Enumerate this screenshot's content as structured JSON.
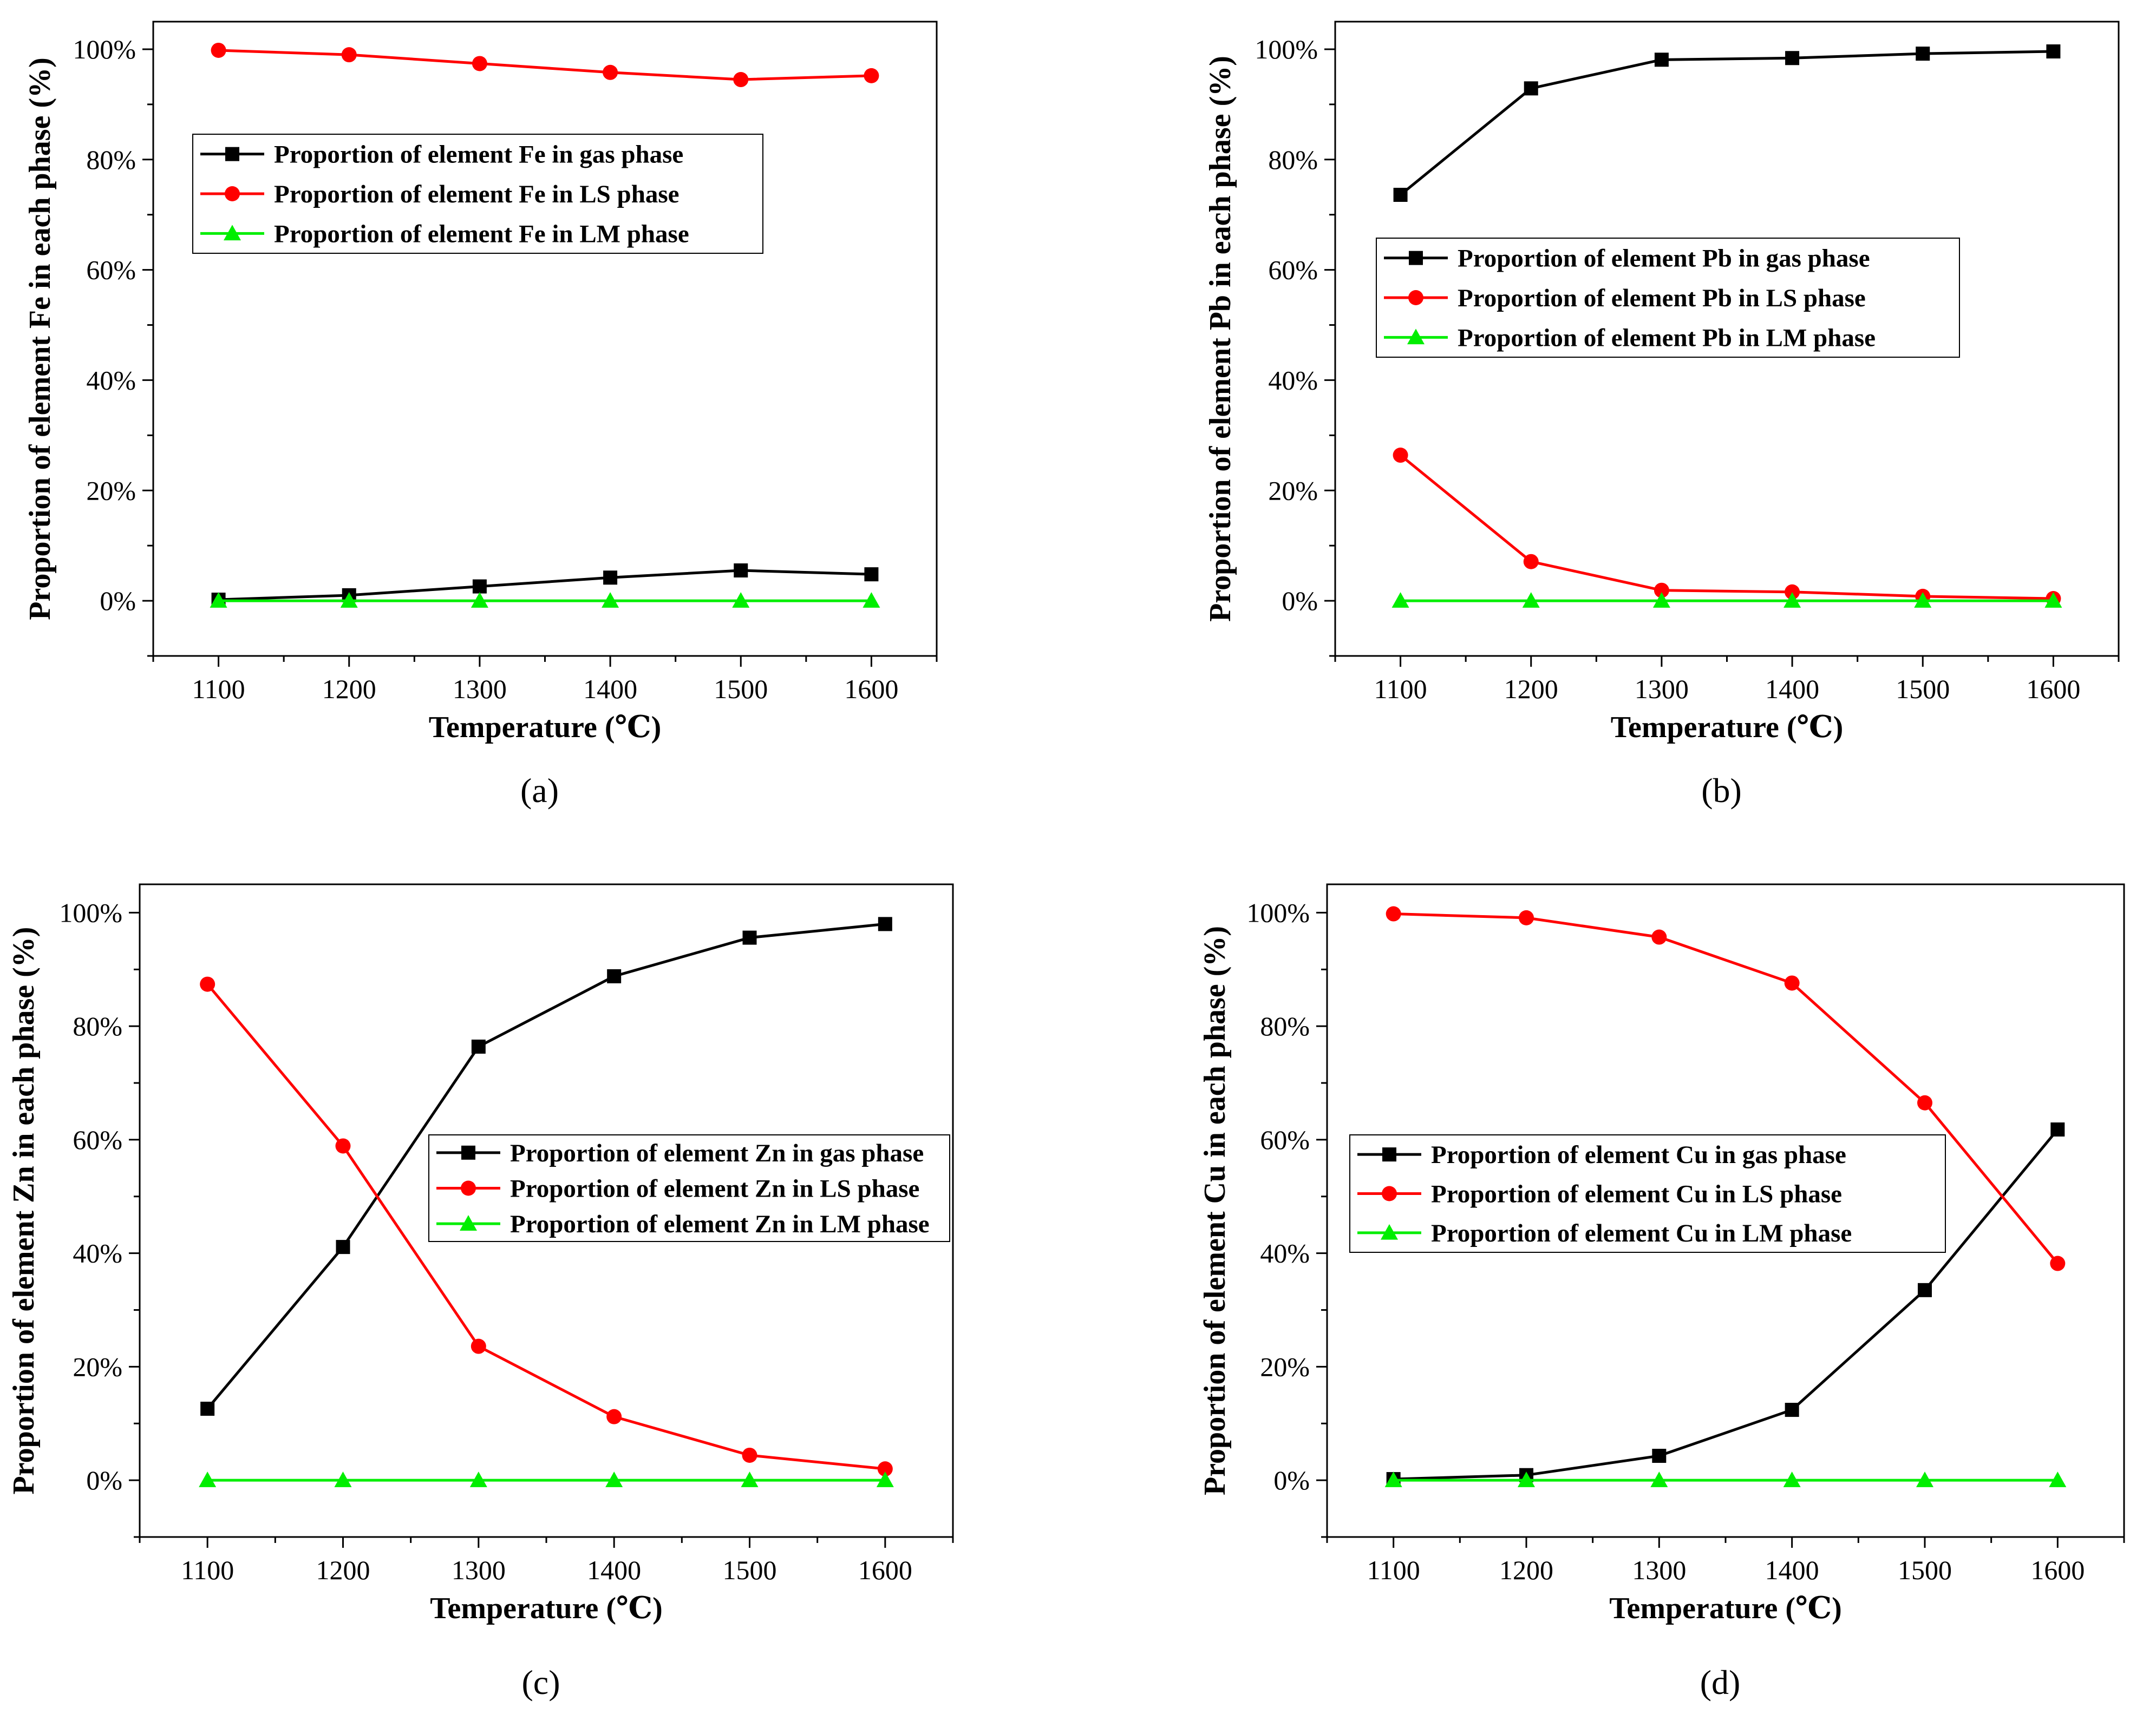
{
  "figure": {
    "panels_count": 4
  },
  "chart_data": [
    {
      "type": "line",
      "panel_label": "(a)",
      "xlabel": "Temperature (℃)",
      "ylabel": "Proportion of element Fe in each phase (%)",
      "x": [
        1100,
        1200,
        1300,
        1400,
        1500,
        1600
      ],
      "xlim": [
        1050,
        1650
      ],
      "ylim": [
        -10,
        105
      ],
      "xticks": [
        "1100",
        "1200",
        "1300",
        "1400",
        "1500",
        "1600"
      ],
      "yticks": [
        "0%",
        "20%",
        "40%",
        "60%",
        "80%",
        "100%"
      ],
      "legend_position": "upper-left",
      "series": [
        {
          "name": "Proportion of element Fe in gas phase",
          "marker": "square",
          "color": "#000000",
          "values": [
            0.2,
            1.0,
            2.6,
            4.2,
            5.5,
            4.8
          ]
        },
        {
          "name": "Proportion of element Fe in LS phase",
          "marker": "circle",
          "color": "#ff0000",
          "values": [
            99.8,
            99.0,
            97.4,
            95.8,
            94.5,
            95.2
          ]
        },
        {
          "name": "Proportion of element Fe in LM phase",
          "marker": "triangle",
          "color": "#00ee00",
          "values": [
            0,
            0,
            0,
            0,
            0,
            0
          ]
        }
      ]
    },
    {
      "type": "line",
      "panel_label": "(b)",
      "xlabel": "Temperature (℃)",
      "ylabel": "Proportion of element Pb in each phase (%)",
      "x": [
        1100,
        1200,
        1300,
        1400,
        1500,
        1600
      ],
      "xlim": [
        1050,
        1650
      ],
      "ylim": [
        -10,
        105
      ],
      "xticks": [
        "1100",
        "1200",
        "1300",
        "1400",
        "1500",
        "1600"
      ],
      "yticks": [
        "0%",
        "20%",
        "40%",
        "60%",
        "80%",
        "100%"
      ],
      "legend_position": "middle-left",
      "series": [
        {
          "name": "Proportion of element Pb in gas phase",
          "marker": "square",
          "color": "#000000",
          "values": [
            73.6,
            92.9,
            98.1,
            98.4,
            99.2,
            99.6
          ]
        },
        {
          "name": "Proportion of element Pb in LS phase",
          "marker": "circle",
          "color": "#ff0000",
          "values": [
            26.4,
            7.1,
            1.9,
            1.6,
            0.8,
            0.4
          ]
        },
        {
          "name": "Proportion of element Pb in LM phase",
          "marker": "triangle",
          "color": "#00ee00",
          "values": [
            0,
            0,
            0,
            0,
            0,
            0
          ]
        }
      ]
    },
    {
      "type": "line",
      "panel_label": "(c)",
      "xlabel": "Temperature (℃)",
      "ylabel": "Proportion of element Zn in each phase (%)",
      "x": [
        1100,
        1200,
        1300,
        1400,
        1500,
        1600
      ],
      "xlim": [
        1050,
        1650
      ],
      "ylim": [
        -10,
        105
      ],
      "xticks": [
        "1100",
        "1200",
        "1300",
        "1400",
        "1500",
        "1600"
      ],
      "yticks": [
        "0%",
        "20%",
        "40%",
        "60%",
        "80%",
        "100%"
      ],
      "legend_position": "center-right",
      "series": [
        {
          "name": "Proportion of element Zn in gas phase",
          "marker": "square",
          "color": "#000000",
          "values": [
            12.6,
            41.1,
            76.4,
            88.8,
            95.6,
            98.0
          ]
        },
        {
          "name": "Proportion of element Zn in LS phase",
          "marker": "circle",
          "color": "#ff0000",
          "values": [
            87.4,
            58.9,
            23.6,
            11.2,
            4.4,
            2.0
          ]
        },
        {
          "name": "Proportion of element Zn in LM phase",
          "marker": "triangle",
          "color": "#00ee00",
          "values": [
            0,
            0,
            0,
            0,
            0,
            0
          ]
        }
      ]
    },
    {
      "type": "line",
      "panel_label": "(d)",
      "xlabel": "Temperature (℃)",
      "ylabel": "Proportion of element Cu in each phase (%)",
      "x": [
        1100,
        1200,
        1300,
        1400,
        1500,
        1600
      ],
      "xlim": [
        1050,
        1650
      ],
      "ylim": [
        -10,
        105
      ],
      "xticks": [
        "1100",
        "1200",
        "1300",
        "1400",
        "1500",
        "1600"
      ],
      "yticks": [
        "0%",
        "20%",
        "40%",
        "60%",
        "80%",
        "100%"
      ],
      "legend_position": "center-left",
      "series": [
        {
          "name": "Proportion of element Cu in gas phase",
          "marker": "square",
          "color": "#000000",
          "values": [
            0.2,
            0.9,
            4.3,
            12.4,
            33.5,
            61.8
          ]
        },
        {
          "name": "Proportion of element Cu in LS phase",
          "marker": "circle",
          "color": "#ff0000",
          "values": [
            99.8,
            99.1,
            95.7,
            87.6,
            66.5,
            38.2
          ]
        },
        {
          "name": "Proportion of element Cu in LM phase",
          "marker": "triangle",
          "color": "#00ee00",
          "values": [
            0,
            0,
            0,
            0,
            0,
            0
          ]
        }
      ]
    }
  ]
}
